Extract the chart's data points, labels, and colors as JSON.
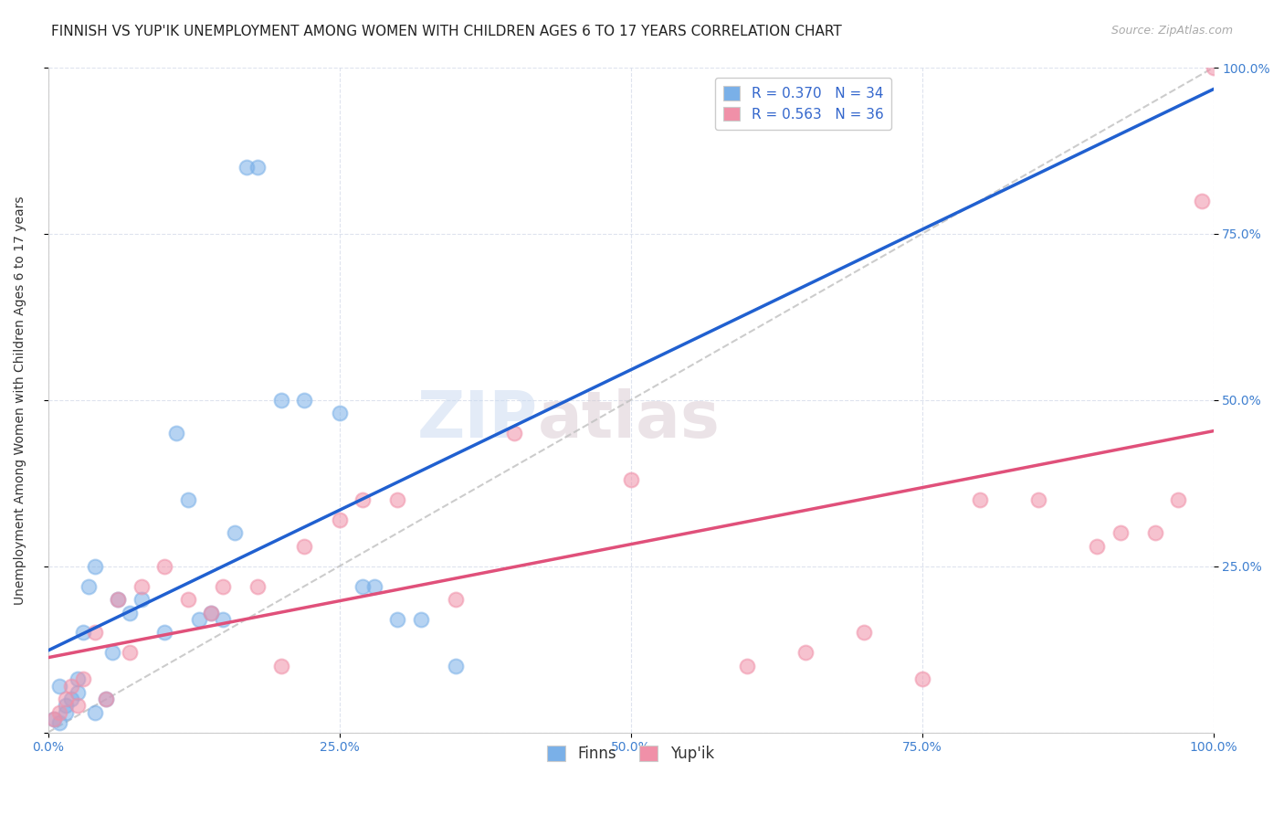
{
  "title": "FINNISH VS YUP'IK UNEMPLOYMENT AMONG WOMEN WITH CHILDREN AGES 6 TO 17 YEARS CORRELATION CHART",
  "source": "Source: ZipAtlas.com",
  "ylabel": "Unemployment Among Women with Children Ages 6 to 17 years",
  "watermark_zip": "ZIP",
  "watermark_atlas": "atlas",
  "bottom_legend": [
    "Finns",
    "Yup'ik"
  ],
  "finns_R": 0.37,
  "finns_N": 34,
  "yupik_R": 0.563,
  "yupik_N": 36,
  "finns_color": "#7ab0e8",
  "yupik_color": "#f090a8",
  "finns_line_color": "#2060d0",
  "yupik_line_color": "#e0507a",
  "diagonal_color": "#c0c0c0",
  "background_color": "#ffffff",
  "title_fontsize": 11,
  "source_fontsize": 9,
  "axis_label_fontsize": 10,
  "tick_fontsize": 10,
  "legend_fontsize": 11,
  "axis_tick_color": "#4080d0",
  "finns_x": [
    0.5,
    1.0,
    1.5,
    2.0,
    2.5,
    3.0,
    3.5,
    4.0,
    5.0,
    5.5,
    6.0,
    7.0,
    8.0,
    10.0,
    11.0,
    12.0,
    13.0,
    14.0,
    15.0,
    16.0,
    17.0,
    18.0,
    20.0,
    22.0,
    25.0,
    27.0,
    28.0,
    30.0,
    32.0,
    35.0,
    1.0,
    1.5,
    2.5,
    4.0
  ],
  "finns_y": [
    2.0,
    1.5,
    3.0,
    5.0,
    8.0,
    15.0,
    22.0,
    25.0,
    5.0,
    12.0,
    20.0,
    18.0,
    20.0,
    15.0,
    45.0,
    35.0,
    17.0,
    18.0,
    17.0,
    30.0,
    85.0,
    85.0,
    50.0,
    50.0,
    48.0,
    22.0,
    22.0,
    17.0,
    17.0,
    10.0,
    7.0,
    4.0,
    6.0,
    3.0
  ],
  "yupik_x": [
    0.5,
    1.0,
    1.5,
    2.0,
    2.5,
    3.0,
    4.0,
    5.0,
    6.0,
    7.0,
    8.0,
    10.0,
    12.0,
    14.0,
    15.0,
    18.0,
    20.0,
    22.0,
    25.0,
    27.0,
    30.0,
    35.0,
    40.0,
    50.0,
    60.0,
    65.0,
    70.0,
    75.0,
    80.0,
    85.0,
    90.0,
    92.0,
    95.0,
    97.0,
    99.0,
    100.0
  ],
  "yupik_y": [
    2.0,
    3.0,
    5.0,
    7.0,
    4.0,
    8.0,
    15.0,
    5.0,
    20.0,
    12.0,
    22.0,
    25.0,
    20.0,
    18.0,
    22.0,
    22.0,
    10.0,
    28.0,
    32.0,
    35.0,
    35.0,
    20.0,
    45.0,
    38.0,
    10.0,
    12.0,
    15.0,
    8.0,
    35.0,
    35.0,
    28.0,
    30.0,
    30.0,
    35.0,
    80.0,
    100.0
  ]
}
